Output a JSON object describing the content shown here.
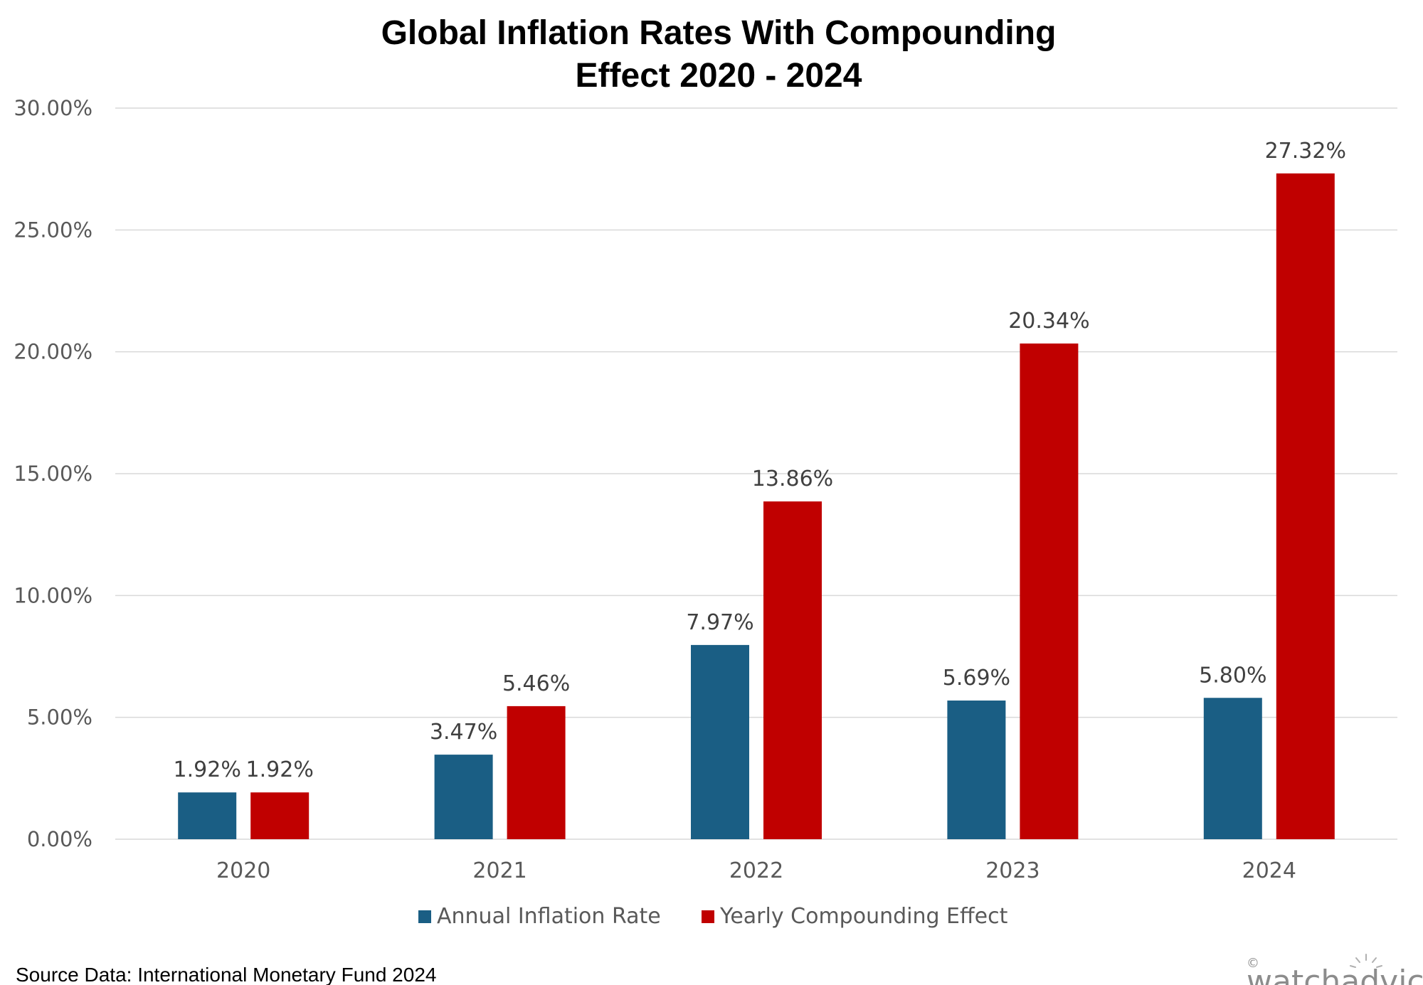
{
  "chart_data": {
    "type": "bar",
    "title_line1": "Global Inflation Rates With Compounding",
    "title_line2": "Effect 2020 - 2024",
    "categories": [
      "2020",
      "2021",
      "2022",
      "2023",
      "2024"
    ],
    "series": [
      {
        "name": "Annual Inflation Rate",
        "color": "#1a5e84",
        "values": [
          1.92,
          3.47,
          7.97,
          5.69,
          5.8
        ],
        "labels": [
          "1.92%",
          "3.47%",
          "7.97%",
          "5.69%",
          "5.80%"
        ]
      },
      {
        "name": "Yearly Compounding Effect",
        "color": "#c00000",
        "values": [
          1.92,
          5.46,
          13.86,
          20.34,
          27.32
        ],
        "labels": [
          "1.92%",
          "5.46%",
          "13.86%",
          "20.34%",
          "27.32%"
        ]
      }
    ],
    "ylim": [
      0,
      30
    ],
    "yticks": [
      "0.00%",
      "5.00%",
      "10.00%",
      "15.00%",
      "20.00%",
      "25.00%",
      "30.00%"
    ],
    "grid": true,
    "legend_position": "bottom"
  },
  "footer": {
    "source": "Source Data: International Monetary Fund 2024",
    "logo_text": "watchadvice",
    "logo_mark": "©"
  }
}
